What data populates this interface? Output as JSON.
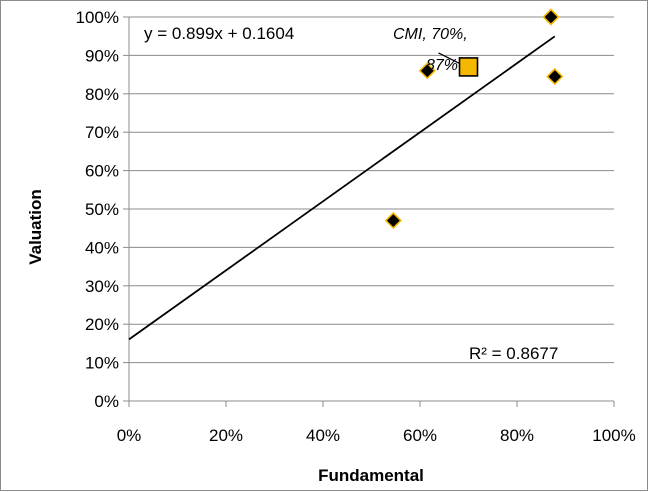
{
  "chart_data": {
    "type": "scatter",
    "xlabel": "Fundamental",
    "ylabel": "Valuation",
    "xlim": [
      0,
      1
    ],
    "ylim": [
      0,
      1
    ],
    "x_ticks": [
      "0%",
      "20%",
      "40%",
      "60%",
      "80%",
      "100%"
    ],
    "y_ticks": [
      "0%",
      "10%",
      "20%",
      "30%",
      "40%",
      "50%",
      "60%",
      "70%",
      "80%",
      "90%",
      "100%"
    ],
    "grid": "horizontal",
    "series": [
      {
        "marker": "diamond",
        "color": "#000000",
        "edge_color": "#f5b800",
        "points": [
          {
            "x": 0.545,
            "y": 0.47
          },
          {
            "x": 0.615,
            "y": 0.86
          },
          {
            "x": 0.87,
            "y": 1.0
          },
          {
            "x": 0.878,
            "y": 0.845
          }
        ]
      },
      {
        "marker": "square",
        "color": "#f5b800",
        "edge_color": "#000000",
        "points": [
          {
            "x": 0.7,
            "y": 0.87
          }
        ]
      }
    ],
    "trendline": {
      "slope": 0.899,
      "intercept": 0.1604,
      "equation_label": "y = 0.899x + 0.1604",
      "r2_label": "R² = 0.8677"
    },
    "annotations": [
      {
        "lines": [
          "CMI, 70%,",
          "87%"
        ]
      }
    ]
  }
}
